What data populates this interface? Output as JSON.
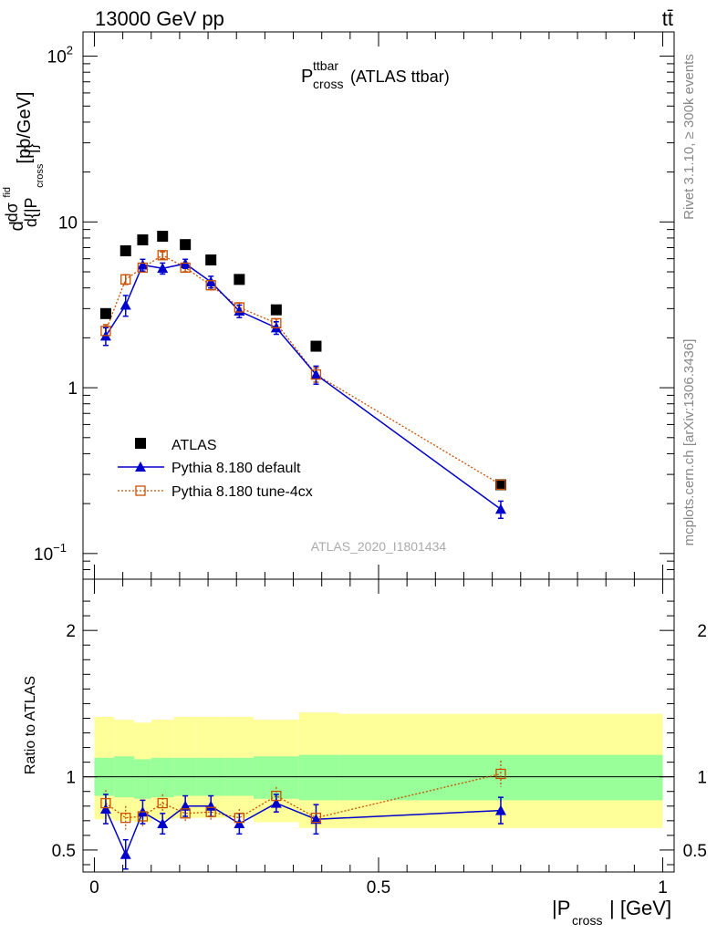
{
  "header": {
    "left": "13000 GeV pp",
    "right": "tt̄"
  },
  "side": {
    "rivet": "Rivet 3.1.10, ≥ 300k events",
    "mcplots": "mcplots.cern.ch [arXiv:1306.3436]"
  },
  "title": {
    "main": "P",
    "sup": "ttbar",
    "sub": "cross",
    "suffix": "(ATLAS ttbar)"
  },
  "analysis_id": "ATLAS_2020_I1801434",
  "ylabel_main": "d{|P_cross|} [pb/GeV]",
  "xlabel": {
    "pre": "|P",
    "sub": "cross",
    "post": "| [GeV]"
  },
  "ratio_ylabel": "Ratio to ATLAS",
  "legend": [
    "ATLAS",
    "Pythia 8.180 default",
    "Pythia 8.180 tune-4cx"
  ],
  "colors": {
    "data": "#000000",
    "default": "#0000cc",
    "tune": "#c85000",
    "band_inner": "#99ff99",
    "band_outer": "#ffff99"
  },
  "chart_data": [
    {
      "type": "line",
      "yscale": "log",
      "ylim": [
        0.07,
        140
      ],
      "xlim": [
        -0.02,
        1.02
      ],
      "y_tick_labels": [
        "10^-1",
        "1",
        "10",
        "10^2"
      ],
      "x": [
        0.02,
        0.055,
        0.085,
        0.12,
        0.16,
        0.205,
        0.255,
        0.32,
        0.39,
        0.715
      ],
      "series": [
        {
          "name": "ATLAS",
          "marker": "square",
          "values": [
            2.8,
            6.7,
            7.8,
            8.2,
            7.3,
            5.9,
            4.5,
            2.95,
            1.78,
            0.26
          ]
        },
        {
          "name": "Pythia 8.180 default",
          "marker": "triangle",
          "values": [
            2.05,
            3.15,
            5.5,
            5.25,
            5.6,
            4.35,
            2.9,
            2.3,
            1.2,
            0.185
          ],
          "err": [
            0.25,
            0.45,
            0.45,
            0.4,
            0.35,
            0.35,
            0.25,
            0.2,
            0.15,
            0.022
          ]
        },
        {
          "name": "Pythia 8.180 tune-4cx",
          "marker": "open-square",
          "values": [
            2.2,
            4.5,
            5.3,
            6.3,
            5.3,
            4.15,
            3.05,
            2.45,
            1.2,
            0.26
          ],
          "err": [
            0.2,
            0.3,
            0.3,
            0.3,
            0.3,
            0.25,
            0.2,
            0.15,
            0.12,
            0.015
          ]
        }
      ]
    },
    {
      "type": "line",
      "ylabel": "Ratio to ATLAS",
      "ylim": [
        0.35,
        2.35
      ],
      "xlim": [
        -0.02,
        1.02
      ],
      "y_tick_labels": [
        "0.5",
        "1",
        "2"
      ],
      "x_tick_labels": [
        "0",
        "0.5",
        "1"
      ],
      "x": [
        0.02,
        0.055,
        0.085,
        0.12,
        0.16,
        0.205,
        0.255,
        0.32,
        0.39,
        0.715
      ],
      "series": [
        {
          "name": "Pythia 8.180 default",
          "values": [
            0.78,
            0.47,
            0.76,
            0.68,
            0.8,
            0.8,
            0.68,
            0.82,
            0.71,
            0.77
          ],
          "err": [
            0.1,
            0.1,
            0.08,
            0.07,
            0.07,
            0.07,
            0.07,
            0.06,
            0.1,
            0.09
          ]
        },
        {
          "name": "Pythia 8.180 tune-4cx",
          "values": [
            0.82,
            0.72,
            0.73,
            0.82,
            0.75,
            0.76,
            0.72,
            0.87,
            0.72,
            1.02
          ],
          "err": [
            0.09,
            0.08,
            0.07,
            0.06,
            0.06,
            0.06,
            0.06,
            0.06,
            0.08,
            0.09
          ]
        }
      ],
      "bands": {
        "edges": [
          0,
          0.035,
          0.07,
          0.1,
          0.14,
          0.18,
          0.23,
          0.28,
          0.36,
          0.43,
          1.0
        ],
        "inner_lo": [
          0.87,
          0.86,
          0.85,
          0.86,
          0.87,
          0.87,
          0.87,
          0.85,
          0.84,
          0.84
        ],
        "inner_hi": [
          1.13,
          1.14,
          1.12,
          1.13,
          1.13,
          1.13,
          1.13,
          1.14,
          1.15,
          1.15
        ],
        "outer_lo": [
          0.71,
          0.7,
          0.69,
          0.71,
          0.72,
          0.72,
          0.72,
          0.69,
          0.65,
          0.65
        ],
        "outer_hi": [
          1.41,
          1.39,
          1.37,
          1.39,
          1.41,
          1.41,
          1.41,
          1.39,
          1.44,
          1.43
        ]
      }
    }
  ]
}
